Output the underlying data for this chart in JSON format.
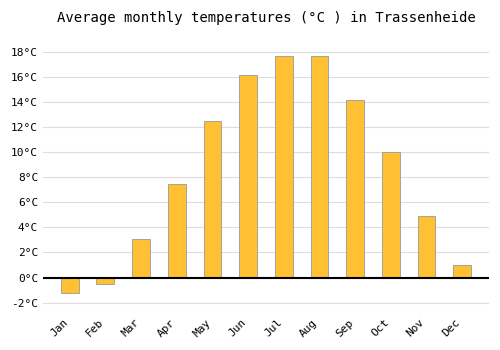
{
  "title": "Average monthly temperatures (°C ) in Trassenheide",
  "months": [
    "Jan",
    "Feb",
    "Mar",
    "Apr",
    "May",
    "Jun",
    "Jul",
    "Aug",
    "Sep",
    "Oct",
    "Nov",
    "Dec"
  ],
  "values": [
    -1.2,
    -0.5,
    3.1,
    7.5,
    12.5,
    16.2,
    17.7,
    17.7,
    14.2,
    10.0,
    4.9,
    1.0
  ],
  "bar_color": "#FFC133",
  "bar_edge_color": "#999999",
  "background_color": "#ffffff",
  "plot_bg_color": "#ffffff",
  "grid_color": "#dddddd",
  "yticks": [
    -2,
    0,
    2,
    4,
    6,
    8,
    10,
    12,
    14,
    16,
    18
  ],
  "ylim": [
    -2.8,
    19.5
  ],
  "xlim": [
    -0.75,
    11.75
  ],
  "title_fontsize": 10,
  "tick_fontsize": 8,
  "font_family": "monospace",
  "bar_width": 0.5
}
